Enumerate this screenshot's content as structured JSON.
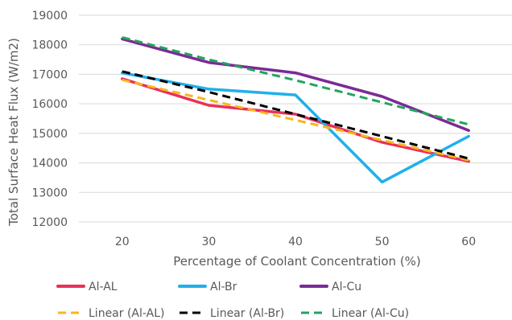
{
  "chart_data": {
    "type": "line",
    "title": "",
    "xlabel": "Percentage of Coolant Concentration (%)",
    "ylabel": "Total Surface Heat Flux (W/m2)",
    "categories": [
      "20",
      "30",
      "40",
      "50",
      "60"
    ],
    "x": [
      20,
      30,
      40,
      50,
      60
    ],
    "ylim": [
      12000,
      19000
    ],
    "yticks": [
      "12000",
      "13000",
      "14000",
      "15000",
      "16000",
      "17000",
      "18000",
      "19000"
    ],
    "grid": "horizontal",
    "legend_position": "bottom",
    "series": [
      {
        "name": "Al-AL",
        "values": [
          16850,
          15950,
          15650,
          14700,
          14050
        ],
        "color": "#e8315a",
        "style": "solid"
      },
      {
        "name": "Al-Br",
        "values": [
          17050,
          16500,
          16300,
          13350,
          14900
        ],
        "color": "#1fb0ea",
        "style": "solid"
      },
      {
        "name": "Al-Cu",
        "values": [
          18200,
          17400,
          17050,
          16250,
          15100
        ],
        "color": "#7a2b96",
        "style": "solid"
      },
      {
        "name": "Linear (Al-AL)",
        "values": [
          16810,
          16130,
          15450,
          14770,
          14090
        ],
        "color": "#f8b61c",
        "style": "dashed"
      },
      {
        "name": "Linear (Al-Br)",
        "values": [
          17100,
          16400,
          15650,
          14900,
          14150
        ],
        "color": "#000000",
        "style": "dashed"
      },
      {
        "name": "Linear (Al-Cu)",
        "values": [
          18250,
          17500,
          16800,
          16050,
          15300
        ],
        "color": "#22a55b",
        "style": "dashed"
      }
    ]
  }
}
